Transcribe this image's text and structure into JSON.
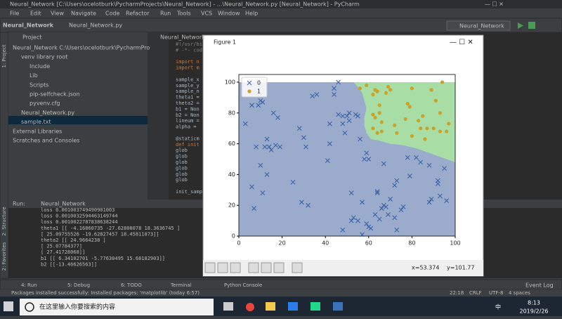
{
  "window_title": "Neural_Network [C:\\Users\\ocelotburk\\PycharmProjects\\Neural_Network] - ...\\Neural_Network.py [Neural_Network] - PyCharm",
  "menu": [
    "File",
    "Edit",
    "View",
    "Navigate",
    "Code",
    "Refactor",
    "Run",
    "Tools",
    "VCS",
    "Window",
    "Help"
  ],
  "breadcrumb": [
    "Neural_Network",
    "Neural_Network.py"
  ],
  "run_config": "Neural_Network",
  "project_panel": {
    "title": "Project",
    "tree": [
      "Neural_Network C:\\Users\\ocelotburk\\PycharmPro",
      "venv library root",
      "Include",
      "Lib",
      "Scripts",
      "pip-selfcheck.json",
      "pyvenv.cfg",
      "Neural_Network.py",
      "sample.txt",
      "External Libraries",
      "Scratches and Consoles"
    ]
  },
  "side_tabs": [
    "1: Project",
    "2: Structure",
    "2: Favorites"
  ],
  "editor": {
    "tab": "Neural_Network",
    "lines": [
      "#!/usr/bi",
      "# -*- cod",
      "",
      "import n",
      "import m",
      "",
      "sample_x",
      "sample_y",
      "sample_n",
      "theta1 =",
      "theta2 =",
      "b1 = Non",
      "b2 = Non",
      "lineum =",
      "alpha =",
      "",
      "@staticm",
      "def init",
      "    glob",
      "    glob",
      "    glob",
      "    glob",
      "    glob",
      "    glob",
      "",
      "init_samp"
    ]
  },
  "figure": {
    "title": "Figure 1",
    "coords": [
      "x=53.374",
      "y=101.77"
    ]
  },
  "chart_data": {
    "type": "scatter",
    "xlim": [
      0,
      100
    ],
    "ylim": [
      0,
      105
    ],
    "xticks": [
      0,
      20,
      40,
      60,
      80,
      100
    ],
    "yticks": [
      0,
      20,
      40,
      60,
      80,
      100
    ],
    "legend": "upper left",
    "regions": [
      {
        "color": "#9aabcb",
        "x": [
          0,
          100,
          100,
          0
        ],
        "y": [
          0,
          0,
          100,
          100
        ]
      },
      {
        "color": "#a8dea5",
        "x": [
          53,
          55,
          57,
          58,
          59,
          58,
          58,
          59,
          61,
          65,
          70,
          76,
          82,
          88,
          94,
          100,
          100
        ],
        "y": [
          100,
          97,
          93,
          88,
          83,
          77,
          72,
          67,
          63,
          62,
          60,
          59,
          57,
          54,
          51,
          48,
          100
        ]
      }
    ],
    "series": [
      {
        "name": "0",
        "color": "#3b63a8",
        "marker": "x",
        "x": [
          3,
          6,
          9,
          10,
          11,
          8,
          12,
          13,
          14,
          15,
          16,
          17,
          18,
          19,
          6,
          7,
          10,
          11,
          13,
          25,
          28,
          29,
          30,
          31,
          32,
          34,
          36,
          41,
          42,
          42,
          44,
          44,
          46,
          46,
          48,
          48,
          48,
          50,
          49,
          51,
          51,
          52,
          52,
          53,
          54,
          55,
          55,
          56,
          57,
          57,
          58,
          59,
          59,
          60,
          60,
          61,
          63,
          64,
          64,
          65,
          66,
          67,
          67,
          68,
          69,
          70,
          72,
          72,
          73,
          73,
          75,
          76,
          78,
          79,
          82,
          84,
          88,
          88,
          89,
          92,
          92,
          93,
          95,
          96
        ],
        "y": [
          73,
          85,
          85,
          88,
          87,
          58,
          58,
          63,
          58,
          56,
          80,
          59,
          77,
          58,
          32,
          18,
          46,
          28,
          40,
          35,
          70,
          22,
          64,
          58,
          20,
          91,
          92,
          49,
          73,
          60,
          96,
          92,
          100,
          79,
          78,
          73,
          4,
          78,
          67,
          80,
          75,
          28,
          10,
          12,
          79,
          10,
          78,
          63,
          1,
          22,
          50,
          8,
          54,
          50,
          6,
          5,
          14,
          28,
          29,
          11,
          18,
          47,
          20,
          19,
          14,
          24,
          33,
          12,
          4,
          36,
          17,
          19,
          51,
          39,
          51,
          48,
          46,
          22,
          24,
          36,
          34,
          26,
          44,
          23
        ]
      },
      {
        "name": "1",
        "color": "#c9a227",
        "marker": "o",
        "x": [
          56,
          59,
          62,
          63,
          64,
          65,
          65,
          66,
          68,
          69,
          70,
          62,
          63,
          64,
          62,
          73,
          72,
          77,
          78,
          79,
          80,
          80,
          83,
          84,
          85,
          86,
          87,
          89,
          90,
          91,
          93,
          93,
          94,
          96,
          97,
          66
        ],
        "y": [
          96,
          98,
          92,
          95,
          94,
          85,
          80,
          68,
          93,
          97,
          95,
          79,
          77,
          67,
          70,
          67,
          72,
          76,
          86,
          84,
          96,
          65,
          75,
          70,
          78,
          63,
          70,
          95,
          70,
          88,
          80,
          68,
          100,
          68,
          73,
          74
        ]
      }
    ]
  },
  "run_panel": {
    "label": "Run:",
    "tab": "Neural_Network",
    "output": [
      "loss 0.001003749490901003",
      "loss 0.0010032594463149744",
      "loss 0.0010022787838638244",
      "theta1 [[ -4.16860735 -27.62808078  18.3636745 ]",
      "  [ 25.09755526 -19.62827457  18.45811873]]",
      "theta2 [[ 24.9664238 ]",
      "  [ 25.07784377]",
      "  [ 27.41728068]]",
      "b1 [[ 6.34102701 -5.77630495 15.68182903]]",
      "b2 [[-13.46626563]]"
    ]
  },
  "tool_tabs": [
    "4: Run",
    "5: Debug",
    "6: TODO",
    "Terminal",
    "Python Console"
  ],
  "event_log": "Event Log",
  "status": {
    "message": "Packages installed successfully: Installed packages: 'matplotlib' (today 6:57)",
    "items": [
      "22:18",
      "CRLF",
      "UTF-8",
      "4 spaces"
    ]
  },
  "taskbar": {
    "search": "在这里输入你要搜索的内容",
    "time": "8:13",
    "date": "2019/2/26",
    "ime": "中"
  }
}
